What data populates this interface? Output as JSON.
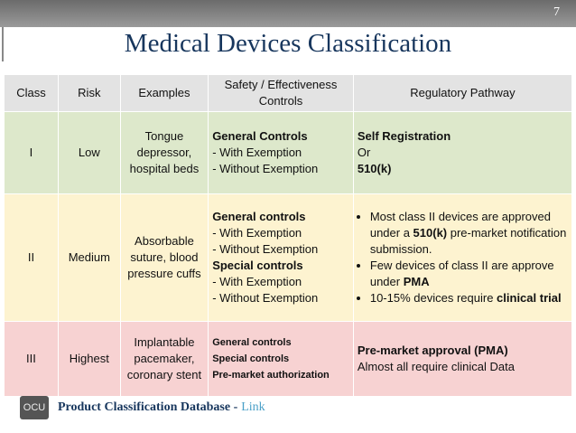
{
  "slide_number": "7",
  "title": "Medical Devices Classification",
  "table": {
    "header": [
      "Class",
      "Risk",
      "Examples",
      "Safety / Effectiveness Controls",
      "Regulatory Pathway"
    ],
    "rows": [
      {
        "class": "I",
        "risk": "Low",
        "examples": "Tongue depressor, hospital beds",
        "controls": {
          "lines": [
            [
              {
                "text": "General Controls",
                "bold": true
              }
            ],
            [
              {
                "text": "- With Exemption"
              }
            ],
            [
              {
                "text": "- Without Exemption"
              }
            ]
          ]
        },
        "pathway": {
          "lines": [
            [
              {
                "text": "Self Registration",
                "bold": true
              }
            ],
            [
              {
                "text": "Or"
              }
            ],
            [
              {
                "text": "510(k)",
                "bold": true
              }
            ]
          ]
        }
      },
      {
        "class": "II",
        "risk": "Medium",
        "examples": "Absorbable suture, blood pressure cuffs",
        "controls": {
          "lines": [
            [
              {
                "text": "General controls",
                "bold": true
              }
            ],
            [
              {
                "text": "- With Exemption"
              }
            ],
            [
              {
                "text": "- Without Exemption"
              }
            ],
            [
              {
                "text": "Special controls",
                "bold": true
              }
            ],
            [
              {
                "text": "- With Exemption"
              }
            ],
            [
              {
                "text": "- Without Exemption"
              }
            ]
          ]
        },
        "pathway": {
          "bulleted": true,
          "lines": [
            [
              {
                "text": "Most class II devices are approved under a "
              },
              {
                "text": "510(k)",
                "bold": true
              },
              {
                "text": " pre-market notification submission."
              }
            ],
            [
              {
                "text": "Few devices of class II are approve under "
              },
              {
                "text": "PMA",
                "bold": true
              }
            ],
            [
              {
                "text": "10-15% devices require "
              },
              {
                "text": "clinical trial",
                "bold": true
              }
            ]
          ]
        }
      },
      {
        "class": "III",
        "risk": "Highest",
        "examples": "Implantable pacemaker, coronary stent",
        "controls": {
          "small": true,
          "lines": [
            [
              {
                "text": "General controls",
                "bold": true
              }
            ],
            [
              {
                "text": "Special controls",
                "bold": true
              }
            ],
            [
              {
                "text": "Pre-market authorization",
                "bold": true
              }
            ]
          ]
        },
        "pathway": {
          "lines": [
            [
              {
                "text": "Pre-market approval (PMA)",
                "bold": true
              }
            ],
            [
              {
                "text": "Almost all require clinical Data"
              }
            ]
          ]
        }
      }
    ]
  },
  "footer": {
    "logo": "OCU",
    "text": "Product Classification Database -",
    "link": "Link"
  }
}
